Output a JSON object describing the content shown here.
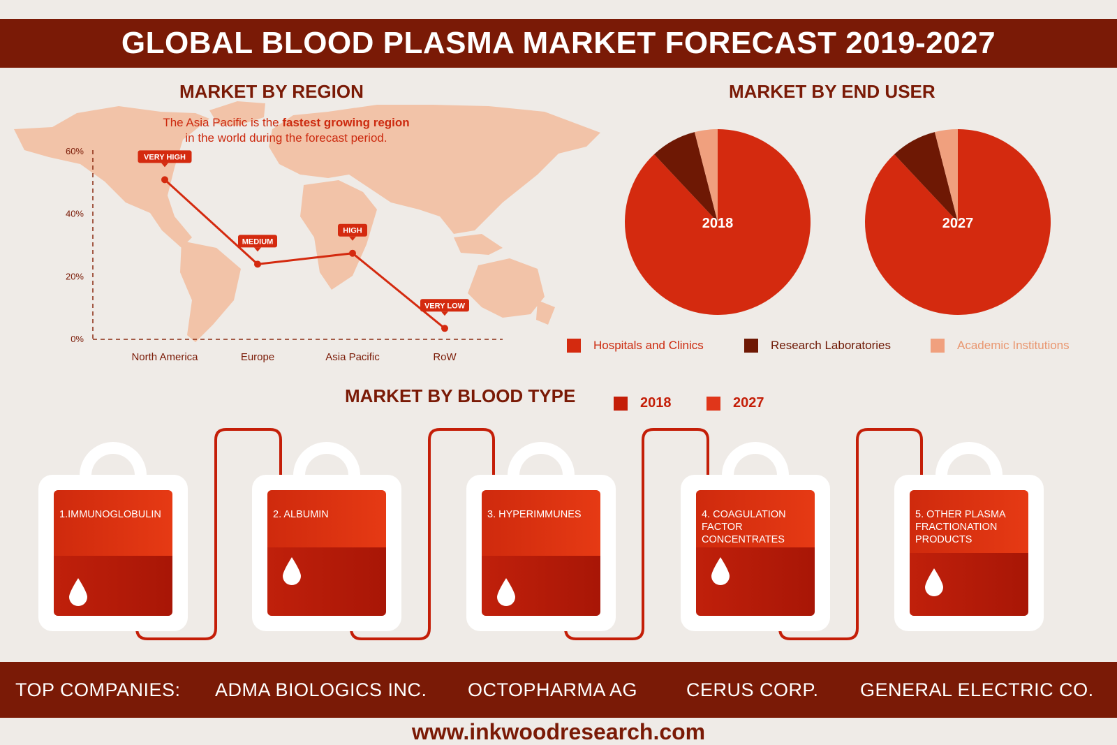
{
  "title": "GLOBAL BLOOD PLASMA MARKET FORECAST 2019-2027",
  "region": {
    "title": "MARKET BY REGION",
    "subtitle_pre": "The Asia Pacific is the ",
    "subtitle_bold": "fastest growing region",
    "subtitle_post": "in the world during the forecast period."
  },
  "end_user": {
    "title": "MARKET BY END USER",
    "legend": [
      {
        "label": "Hospitals and Clinics",
        "color": "#d42a0f"
      },
      {
        "label": "Research Laboratories",
        "color": "#6e1804"
      },
      {
        "label": "Academic Institutions",
        "color": "#f0a07e"
      }
    ]
  },
  "blood_type": {
    "title": "MARKET BY BLOOD TYPE",
    "legend": [
      {
        "label": "2018",
        "color": "#c41e08"
      },
      {
        "label": "2027",
        "color": "#e0361a"
      }
    ],
    "bags": [
      {
        "label": "1.IMMUNOGLOBULIN"
      },
      {
        "label": "2. ALBUMIN"
      },
      {
        "label": "3. HYPERIMMUNES"
      },
      {
        "label": "4. COAGULATION FACTOR CONCENTRATES"
      },
      {
        "label": "5. OTHER PLASMA FRACTIONATION PRODUCTS"
      }
    ]
  },
  "companies": {
    "label": "TOP COMPANIES:",
    "names": [
      "ADMA BIOLOGICS INC.",
      "OCTOPHARMA AG",
      "CERUS CORP.",
      "GENERAL ELECTRIC CO."
    ]
  },
  "website": "www.inkwoodresearch.com",
  "chart_data": [
    {
      "type": "line",
      "title": "MARKET BY REGION",
      "categories": [
        "North America",
        "Europe",
        "Asia Pacific",
        "RoW"
      ],
      "values": [
        51,
        24,
        27.5,
        3.5
      ],
      "point_labels": [
        "VERY HIGH",
        "MEDIUM",
        "HIGH",
        "VERY LOW"
      ],
      "y_ticks": [
        "0%",
        "20%",
        "40%",
        "60%"
      ],
      "ylim": [
        0,
        60
      ],
      "color": "#d42a0f"
    },
    {
      "type": "pie",
      "title": "2018",
      "labels": [
        "Hospitals and Clinics",
        "Research Laboratories",
        "Academic Institutions"
      ],
      "values": [
        88,
        8,
        4
      ],
      "colors": [
        "#d42a0f",
        "#6e1804",
        "#f0a07e"
      ]
    },
    {
      "type": "pie",
      "title": "2027",
      "labels": [
        "Hospitals and Clinics",
        "Research Laboratories",
        "Academic Institutions"
      ],
      "values": [
        88,
        8,
        4
      ],
      "colors": [
        "#d42a0f",
        "#6e1804",
        "#f0a07e"
      ]
    }
  ]
}
